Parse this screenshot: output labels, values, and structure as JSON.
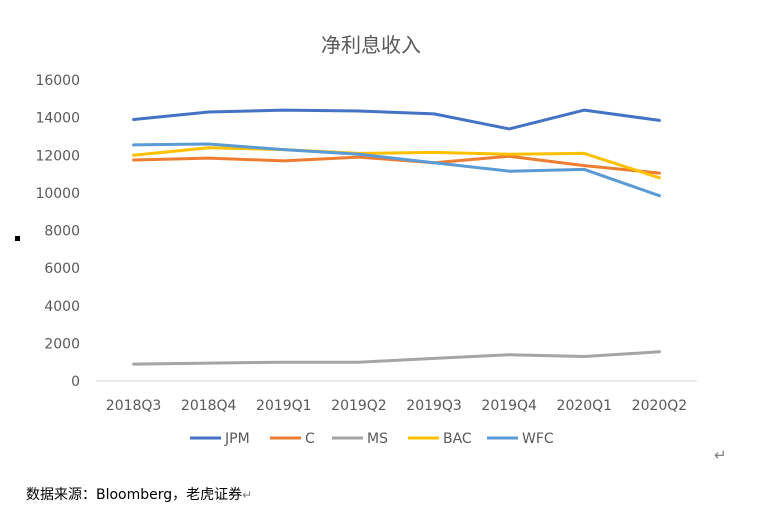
{
  "chart_data": {
    "type": "line",
    "title": "净利息收入",
    "xlabel": "",
    "ylabel": "",
    "ylim": [
      0,
      16000
    ],
    "yticks": [
      0,
      2000,
      4000,
      6000,
      8000,
      10000,
      12000,
      14000,
      16000
    ],
    "grid": false,
    "legend": "bottom",
    "categories": [
      "2018Q3",
      "2018Q4",
      "2019Q1",
      "2019Q2",
      "2019Q3",
      "2019Q4",
      "2020Q1",
      "2020Q2"
    ],
    "series": [
      {
        "name": "JPM",
        "color": "#4472C4",
        "values": [
          13900,
          14300,
          14400,
          14350,
          14200,
          13400,
          14400,
          13850
        ]
      },
      {
        "name": "C",
        "color": "#ED7D31",
        "values": [
          11750,
          11850,
          11700,
          11900,
          11600,
          11950,
          11450,
          11050
        ]
      },
      {
        "name": "MS",
        "color": "#A5A5A5",
        "values": [
          900,
          950,
          1000,
          1000,
          1200,
          1400,
          1300,
          1550
        ]
      },
      {
        "name": "BAC",
        "color": "#FFC000",
        "values": [
          12000,
          12400,
          12300,
          12100,
          12150,
          12050,
          12100,
          10800
        ]
      },
      {
        "name": "WFC",
        "color": "#5B9BD5",
        "values": [
          12550,
          12600,
          12300,
          12050,
          11600,
          11150,
          11250,
          9850
        ]
      }
    ]
  },
  "footer": {
    "source": "数据来源：Bloomberg，老虎证券",
    "return_mark": "↵"
  }
}
